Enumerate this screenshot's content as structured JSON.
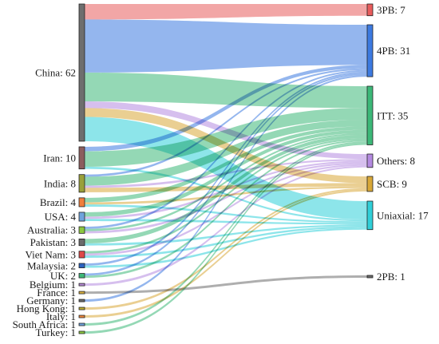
{
  "chart_data": {
    "type": "sankey",
    "title": "",
    "sources": [
      {
        "name": "China",
        "value": 62,
        "color": "#6e6e6e"
      },
      {
        "name": "Iran",
        "value": 10,
        "color": "#8c5e5e"
      },
      {
        "name": "India",
        "value": 8,
        "color": "#9aa03a"
      },
      {
        "name": "Brazil",
        "value": 4,
        "color": "#f07f3c"
      },
      {
        "name": "USA",
        "value": 4,
        "color": "#6fa3dd"
      },
      {
        "name": "Australia",
        "value": 3,
        "color": "#8cc840"
      },
      {
        "name": "Pakistan",
        "value": 3,
        "color": "#6b6b6b"
      },
      {
        "name": "Viet Nam",
        "value": 3,
        "color": "#e04848"
      },
      {
        "name": "Malaysia",
        "value": 2,
        "color": "#2a62c0"
      },
      {
        "name": "UK",
        "value": 2,
        "color": "#3cb878"
      },
      {
        "name": "Belgium",
        "value": 1,
        "color": "#b88ad8"
      },
      {
        "name": "France",
        "value": 1,
        "color": "#d8b040"
      },
      {
        "name": "Germany",
        "value": 1,
        "color": "#6b6b6b"
      },
      {
        "name": "Hong Kong",
        "value": 1,
        "color": "#c0b030"
      },
      {
        "name": "Italy",
        "value": 1,
        "color": "#f0883c"
      },
      {
        "name": "South Africa",
        "value": 1,
        "color": "#6fa3dd"
      },
      {
        "name": "Turkey",
        "value": 1,
        "color": "#8cc840"
      }
    ],
    "targets": [
      {
        "name": "3PB",
        "value": 7,
        "color": "#e85c5c"
      },
      {
        "name": "4PB",
        "value": 31,
        "color": "#3c7ae0"
      },
      {
        "name": "ITT",
        "value": 35,
        "color": "#3cb878"
      },
      {
        "name": "Others",
        "value": 8,
        "color": "#b48ae0"
      },
      {
        "name": "SCB",
        "value": 9,
        "color": "#d8a838"
      },
      {
        "name": "Uniaxial",
        "value": 17,
        "color": "#30cfd8"
      },
      {
        "name": "2PB",
        "value": 1,
        "color": "#6b6b6b"
      }
    ],
    "links": [
      {
        "source": "China",
        "target": "3PB",
        "value": 7
      },
      {
        "source": "China",
        "target": "4PB",
        "value": 24
      },
      {
        "source": "China",
        "target": "ITT",
        "value": 13
      },
      {
        "source": "China",
        "target": "Others",
        "value": 3
      },
      {
        "source": "China",
        "target": "SCB",
        "value": 4
      },
      {
        "source": "China",
        "target": "Uniaxial",
        "value": 11
      },
      {
        "source": "Iran",
        "target": "4PB",
        "value": 2
      },
      {
        "source": "Iran",
        "target": "ITT",
        "value": 7
      },
      {
        "source": "Iran",
        "target": "Uniaxial",
        "value": 1
      },
      {
        "source": "India",
        "target": "4PB",
        "value": 1
      },
      {
        "source": "India",
        "target": "ITT",
        "value": 4
      },
      {
        "source": "India",
        "target": "Others",
        "value": 1
      },
      {
        "source": "India",
        "target": "SCB",
        "value": 2
      },
      {
        "source": "Brazil",
        "target": "ITT",
        "value": 2
      },
      {
        "source": "Brazil",
        "target": "SCB",
        "value": 1
      },
      {
        "source": "Brazil",
        "target": "Uniaxial",
        "value": 1
      },
      {
        "source": "USA",
        "target": "ITT",
        "value": 2
      },
      {
        "source": "USA",
        "target": "Others",
        "value": 1
      },
      {
        "source": "USA",
        "target": "Uniaxial",
        "value": 1
      },
      {
        "source": "Australia",
        "target": "4PB",
        "value": 1
      },
      {
        "source": "Australia",
        "target": "ITT",
        "value": 1
      },
      {
        "source": "Australia",
        "target": "Others",
        "value": 1
      },
      {
        "source": "Pakistan",
        "target": "ITT",
        "value": 2
      },
      {
        "source": "Pakistan",
        "target": "Uniaxial",
        "value": 1
      },
      {
        "source": "Viet Nam",
        "target": "ITT",
        "value": 1
      },
      {
        "source": "Viet Nam",
        "target": "Others",
        "value": 1
      },
      {
        "source": "Viet Nam",
        "target": "Uniaxial",
        "value": 1
      },
      {
        "source": "Malaysia",
        "target": "4PB",
        "value": 1
      },
      {
        "source": "Malaysia",
        "target": "Uniaxial",
        "value": 1
      },
      {
        "source": "UK",
        "target": "4PB",
        "value": 1
      },
      {
        "source": "UK",
        "target": "ITT",
        "value": 1
      },
      {
        "source": "Belgium",
        "target": "Others",
        "value": 1
      },
      {
        "source": "France",
        "target": "2PB",
        "value": 1
      },
      {
        "source": "Germany",
        "target": "4PB",
        "value": 1
      },
      {
        "source": "Hong Kong",
        "target": "SCB",
        "value": 1
      },
      {
        "source": "Italy",
        "target": "SCB",
        "value": 1
      },
      {
        "source": "South Africa",
        "target": "ITT",
        "value": 1
      },
      {
        "source": "Turkey",
        "target": "ITT",
        "value": 1
      }
    ]
  }
}
